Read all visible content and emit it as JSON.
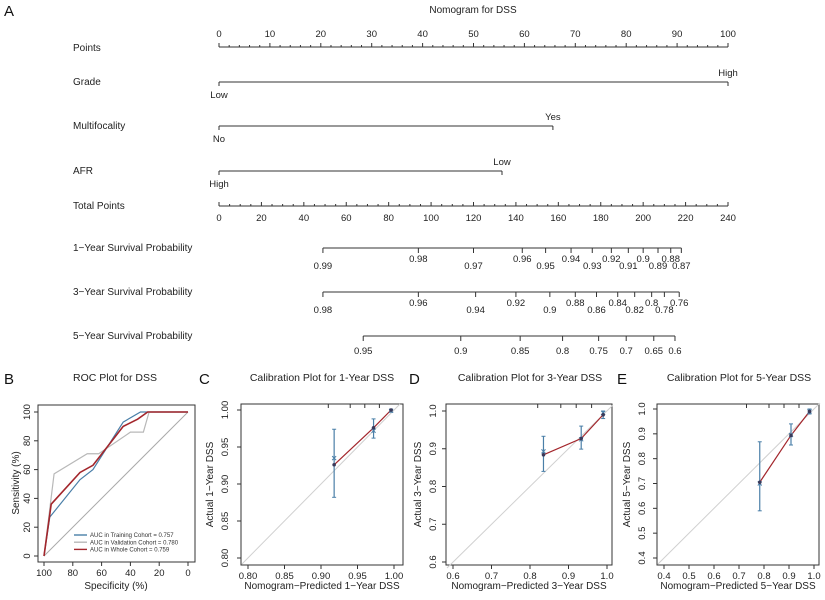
{
  "panels": {
    "a": "A",
    "b": "B",
    "c": "C",
    "d": "D",
    "e": "E"
  },
  "colors": {
    "training": "#4a7fa8",
    "validation": "#b8b8b8",
    "whole": "#a3262c",
    "diagonal": "#d0d0d0",
    "calib_line": "#a3262c",
    "errorbar": "#4a7fa8",
    "axis": "#333333"
  },
  "chart_data": [
    {
      "type": "nomogram",
      "title": "Nomogram for DSS",
      "points_axis": {
        "label": "Points",
        "range": [
          0,
          100
        ],
        "major_ticks": [
          0,
          10,
          20,
          30,
          40,
          50,
          60,
          70,
          80,
          90,
          100
        ]
      },
      "variables": [
        {
          "label": "Grade",
          "levels": [
            {
              "name": "Low",
              "points": 0
            },
            {
              "name": "High",
              "points": 100
            }
          ]
        },
        {
          "label": "Multifocality",
          "levels": [
            {
              "name": "No",
              "points": 0
            },
            {
              "name": "Yes",
              "points": 65.6
            }
          ]
        },
        {
          "label": "AFR",
          "levels": [
            {
              "name": "High",
              "points": 0
            },
            {
              "name": "Low",
              "points": 55.6
            }
          ]
        }
      ],
      "total_points_axis": {
        "label": "Total Points",
        "range": [
          0,
          240
        ],
        "major_ticks": [
          0,
          20,
          40,
          60,
          80,
          100,
          120,
          140,
          160,
          180,
          200,
          220,
          240
        ]
      },
      "survival_axes": [
        {
          "label": "1−Year Survival Probability",
          "ticks": [
            {
              "p": "0.99",
              "total_points": 49
            },
            {
              "p": "0.98",
              "total_points": 94
            },
            {
              "p": "0.97",
              "total_points": 120
            },
            {
              "p": "0.96",
              "total_points": 143
            },
            {
              "p": "0.95",
              "total_points": 154
            },
            {
              "p": "0.94",
              "total_points": 166
            },
            {
              "p": "0.93",
              "total_points": 176
            },
            {
              "p": "0.92",
              "total_points": 185
            },
            {
              "p": "0.91",
              "total_points": 193
            },
            {
              "p": "0.9",
              "total_points": 200
            },
            {
              "p": "0.89",
              "total_points": 207
            },
            {
              "p": "0.88",
              "total_points": 213
            },
            {
              "p": "0.87",
              "total_points": 218
            }
          ]
        },
        {
          "label": "3−Year Survival Probability",
          "ticks": [
            {
              "p": "0.98",
              "total_points": 49
            },
            {
              "p": "0.96",
              "total_points": 94
            },
            {
              "p": "0.94",
              "total_points": 121
            },
            {
              "p": "0.92",
              "total_points": 140
            },
            {
              "p": "0.9",
              "total_points": 156
            },
            {
              "p": "0.88",
              "total_points": 168
            },
            {
              "p": "0.86",
              "total_points": 178
            },
            {
              "p": "0.84",
              "total_points": 188
            },
            {
              "p": "0.82",
              "total_points": 196
            },
            {
              "p": "0.8",
              "total_points": 204
            },
            {
              "p": "0.78",
              "total_points": 210
            },
            {
              "p": "0.76",
              "total_points": 217
            }
          ]
        },
        {
          "label": "5−Year Survival Probability",
          "ticks": [
            {
              "p": "0.95",
              "total_points": 68
            },
            {
              "p": "0.9",
              "total_points": 114
            },
            {
              "p": "0.85",
              "total_points": 142
            },
            {
              "p": "0.8",
              "total_points": 162
            },
            {
              "p": "0.75",
              "total_points": 179
            },
            {
              "p": "0.7",
              "total_points": 192
            },
            {
              "p": "0.65",
              "total_points": 205
            },
            {
              "p": "0.6",
              "total_points": 215
            }
          ]
        }
      ]
    },
    {
      "type": "line",
      "title": "ROC Plot for DSS",
      "xlabel": "Specificity (%)",
      "ylabel": "Sensitivity (%)",
      "xlim": [
        100,
        0
      ],
      "ylim": [
        0,
        100
      ],
      "xticks": [
        100,
        80,
        60,
        40,
        20,
        0
      ],
      "yticks": [
        0,
        20,
        40,
        60,
        80,
        100
      ],
      "legend_position": "bottom-right",
      "series": [
        {
          "name": "AUC in Training Cohort = 0.757",
          "key": "training",
          "x": [
            100,
            96,
            75,
            66,
            45,
            33,
            0
          ],
          "y": [
            0,
            27,
            53,
            60,
            93,
            100,
            100
          ]
        },
        {
          "name": "AUC in Validation Cohort = 0.780",
          "key": "validation",
          "x": [
            100,
            93,
            70,
            62,
            40,
            31,
            27,
            0
          ],
          "y": [
            0,
            57,
            71,
            71,
            86,
            86,
            100,
            100
          ]
        },
        {
          "name": "AUC in Whole Cohort = 0.759",
          "key": "whole",
          "x": [
            100,
            95,
            75,
            66,
            45,
            35,
            28,
            0
          ],
          "y": [
            0,
            36,
            58,
            63,
            90,
            95,
            100,
            100
          ]
        }
      ]
    },
    {
      "type": "scatter",
      "title": "Calibration Plot for 1-Year DSS",
      "xlabel": "Nomogram−Predicted 1−Year DSS",
      "ylabel": "Actual 1−Year DSS",
      "xlim": [
        0.8,
        1.0
      ],
      "ylim": [
        0.8,
        1.0
      ],
      "xticks": [
        "0.80",
        "0.85",
        "0.90",
        "0.95",
        "1.00"
      ],
      "yticks": [
        "0.80",
        "0.85",
        "0.90",
        "0.95",
        "1.00"
      ],
      "points": [
        {
          "x": 0.918,
          "y": 0.926,
          "lo": 0.882,
          "hi": 0.974,
          "bc": 0.935
        },
        {
          "x": 0.972,
          "y": 0.976,
          "lo": 0.962,
          "hi": 0.988,
          "bc": 0.972
        },
        {
          "x": 0.996,
          "y": 1.0,
          "lo": 0.997,
          "hi": 1.0,
          "bc": 0.999
        }
      ]
    },
    {
      "type": "scatter",
      "title": "Calibration Plot for 3-Year DSS",
      "xlabel": "Nomogram−Predicted 3−Year DSS",
      "ylabel": "Actual 3−Year DSS",
      "xlim": [
        0.6,
        1.0
      ],
      "ylim": [
        0.6,
        1.0
      ],
      "xticks": [
        "0.6",
        "0.7",
        "0.8",
        "0.9",
        "1.0"
      ],
      "yticks": [
        "0.6",
        "0.7",
        "0.8",
        "0.9",
        "1.0"
      ],
      "points": [
        {
          "x": 0.835,
          "y": 0.884,
          "lo": 0.84,
          "hi": 0.933,
          "bc": 0.893
        },
        {
          "x": 0.933,
          "y": 0.927,
          "lo": 0.899,
          "hi": 0.96,
          "bc": 0.925
        },
        {
          "x": 0.99,
          "y": 0.99,
          "lo": 0.98,
          "hi": 1.0,
          "bc": 0.995
        }
      ]
    },
    {
      "type": "scatter",
      "title": "Calibration Plot for 5-Year DSS",
      "xlabel": "Nomogram−Predicted 5−Year DSS",
      "ylabel": "Actual 5−Year DSS",
      "xlim": [
        0.4,
        1.0
      ],
      "ylim": [
        0.4,
        1.0
      ],
      "xticks": [
        "0.4",
        "0.5",
        "0.6",
        "0.7",
        "0.8",
        "0.9",
        "1.0"
      ],
      "yticks": [
        "0.4",
        "0.5",
        "0.6",
        "0.7",
        "0.8",
        "0.9",
        "1.0"
      ],
      "points": [
        {
          "x": 0.783,
          "y": 0.705,
          "lo": 0.59,
          "hi": 0.868,
          "bc": 0.7
        },
        {
          "x": 0.908,
          "y": 0.894,
          "lo": 0.855,
          "hi": 0.94,
          "bc": 0.895
        },
        {
          "x": 0.982,
          "y": 0.99,
          "lo": 0.98,
          "hi": 1.0,
          "bc": 0.99
        }
      ]
    }
  ]
}
